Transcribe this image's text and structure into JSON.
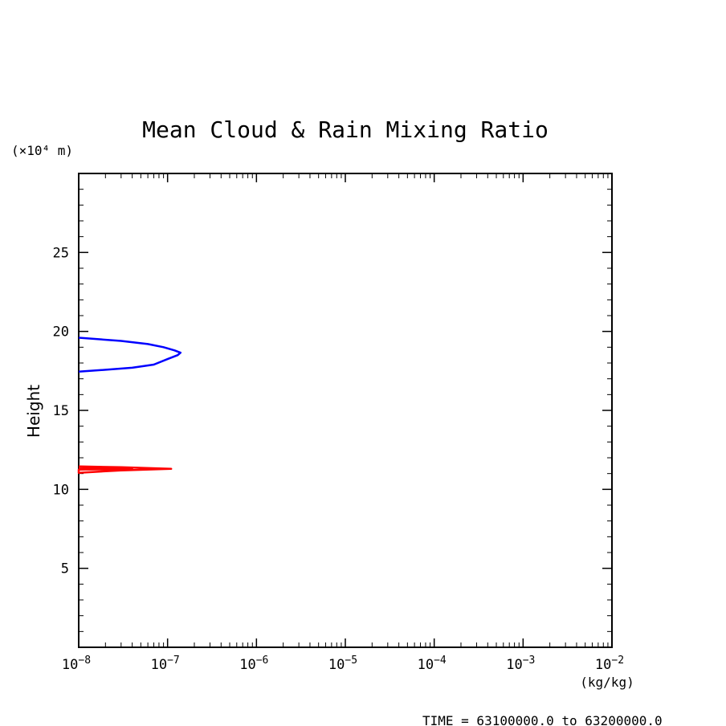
{
  "chart_data": {
    "type": "line",
    "title": "Mean Cloud & Rain Mixing Ratio",
    "xlabel": "(kg/kg)",
    "ylabel": "Height",
    "y_unit_label": "(×10⁴ m)",
    "footer": "TIME = 63100000.0 to 63200000.0",
    "x_scale": "log",
    "xlim": [
      1e-08,
      0.01
    ],
    "ylim": [
      0,
      30
    ],
    "x_ticks": [
      {
        "base": "10",
        "exp": "−8"
      },
      {
        "base": "10",
        "exp": "−7"
      },
      {
        "base": "10",
        "exp": "−6"
      },
      {
        "base": "10",
        "exp": "−5"
      },
      {
        "base": "10",
        "exp": "−4"
      },
      {
        "base": "10",
        "exp": "−3"
      },
      {
        "base": "10",
        "exp": "−2"
      }
    ],
    "y_ticks": [
      "5",
      "10",
      "15",
      "20",
      "25"
    ],
    "y_tick_values": [
      5,
      10,
      15,
      20,
      25
    ],
    "grid": false,
    "series": [
      {
        "color": "#0000ff",
        "points": [
          [
            1e-08,
            19.6
          ],
          [
            3e-08,
            19.4
          ],
          [
            6e-08,
            19.2
          ],
          [
            9e-08,
            19.0
          ],
          [
            1.2e-07,
            18.8
          ],
          [
            1.4e-07,
            18.65
          ],
          [
            1.3e-07,
            18.5
          ],
          [
            1e-07,
            18.25
          ],
          [
            7e-08,
            17.9
          ],
          [
            4e-08,
            17.7
          ],
          [
            1.8e-08,
            17.55
          ],
          [
            1e-08,
            17.45
          ]
        ]
      },
      {
        "color": "#ff0000",
        "points": [
          [
            1e-08,
            11.45
          ],
          [
            3e-08,
            11.4
          ],
          [
            1.1e-07,
            11.3
          ],
          [
            3e-08,
            11.2
          ],
          [
            1e-08,
            11.05
          ],
          [
            1e-08,
            11.25
          ],
          [
            4e-08,
            11.3
          ],
          [
            1e-08,
            11.35
          ]
        ]
      }
    ]
  }
}
